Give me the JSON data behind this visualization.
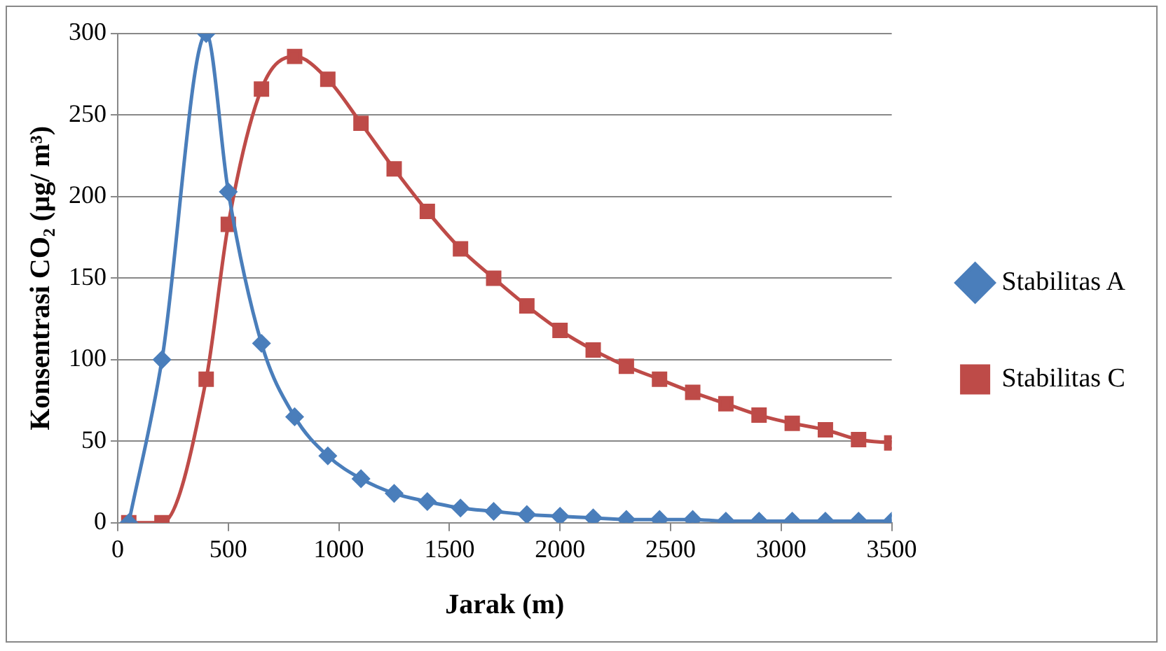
{
  "chart_data": {
    "type": "line",
    "xlabel": "Jarak (m)",
    "ylabel": "Konsentrasi CO₂ (µg/ m³)",
    "x": [
      50,
      200,
      400,
      500,
      650,
      800,
      950,
      1100,
      1250,
      1400,
      1550,
      1700,
      1850,
      2000,
      2150,
      2300,
      2450,
      2600,
      2750,
      2900,
      3050,
      3200,
      3350,
      3500
    ],
    "series": [
      {
        "name": "Stabilitas A",
        "color": "#4a7ebb",
        "marker": "diamond",
        "values": [
          0,
          100,
          300,
          203,
          110,
          65,
          41,
          27,
          18,
          13,
          9,
          7,
          5,
          4,
          3,
          2,
          2,
          2,
          1,
          1,
          1,
          1,
          1,
          1
        ]
      },
      {
        "name": "Stabilitas C",
        "color": "#be4b48",
        "marker": "square",
        "values": [
          0,
          0,
          88,
          183,
          266,
          286,
          272,
          245,
          217,
          191,
          168,
          150,
          133,
          118,
          106,
          96,
          88,
          80,
          73,
          66,
          61,
          57,
          51,
          49
        ]
      }
    ],
    "xlim": [
      0,
      3500
    ],
    "xticks": [
      0,
      500,
      1000,
      1500,
      2000,
      2500,
      3000,
      3500
    ],
    "ylim": [
      0,
      300
    ],
    "yticks": [
      0,
      50,
      100,
      150,
      200,
      250,
      300
    ],
    "grid": "y",
    "legend": "right",
    "line_style": "solid"
  }
}
